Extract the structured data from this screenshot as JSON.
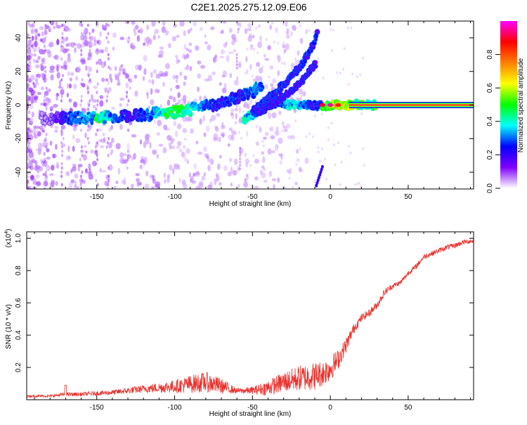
{
  "title": "C2E1.2025.275.12.09.E06",
  "colors": {
    "snr_line": "#e8312c",
    "ridge": "#ff2a2a",
    "axis": "#000000",
    "tail": "#ff3a3a"
  },
  "chart_data": [
    {
      "type": "heatmap",
      "xlabel": "Height of straight line (km)",
      "ylabel": "Frequency (Hz)",
      "xlim": [
        -195,
        92
      ],
      "ylim": [
        -50,
        50
      ],
      "x_ticks": [
        -150,
        -100,
        -50,
        0,
        50
      ],
      "y_ticks": [
        -40,
        -20,
        0,
        20,
        40
      ],
      "colorbar": {
        "label": "Normalized spectral amplitude",
        "range": [
          0,
          1
        ],
        "ticks": [
          "0.0",
          "0.2",
          "0.4",
          "0.6",
          "0.8"
        ],
        "tick_values": [
          0,
          0.2,
          0.4,
          0.6,
          0.8
        ],
        "colormap": [
          "#ffffff",
          "#8000ff",
          "#0000ff",
          "#00ffff",
          "#00ff00",
          "#ffff00",
          "#ff8000",
          "#ff0000",
          "#ff00ff"
        ]
      },
      "features": [
        {
          "name": "main trail",
          "points": [
            [
              -185,
              -8
            ],
            [
              -150,
              -7.5
            ],
            [
              -120,
              -6
            ],
            [
              -100,
              -4
            ],
            [
              -80,
              -1
            ],
            [
              -60,
              4
            ],
            [
              -50,
              8
            ],
            [
              -44,
              11
            ]
          ]
        },
        {
          "name": "lower branch",
          "points": [
            [
              -55,
              -8
            ],
            [
              -45,
              -3
            ],
            [
              -35,
              2
            ],
            [
              -25,
              0
            ],
            [
              -15,
              0
            ],
            [
              0,
              0
            ],
            [
              20,
              0
            ],
            [
              92,
              0
            ]
          ]
        },
        {
          "name": "upper chirp",
          "points": [
            [
              -50,
              -4
            ],
            [
              -40,
              4
            ],
            [
              -30,
              12
            ],
            [
              -20,
              22
            ],
            [
              -12,
              34
            ],
            [
              -8,
              44
            ]
          ]
        },
        {
          "name": "middle chirp",
          "points": [
            [
              -45,
              -4
            ],
            [
              -35,
              2
            ],
            [
              -25,
              8
            ],
            [
              -15,
              18
            ],
            [
              -10,
              24
            ]
          ]
        }
      ]
    },
    {
      "type": "line",
      "xlabel": "Height of straight line (km)",
      "ylabel": "SNR (10 * v/v)",
      "y_multiplier": "(x10",
      "y_multiplier_exp": "4",
      "y_multiplier_close": ")",
      "xlim": [
        -195,
        92
      ],
      "ylim": [
        0,
        1.04
      ],
      "x_ticks": [
        -150,
        -100,
        -50,
        0,
        50
      ],
      "y_ticks": [
        0.2,
        0.4,
        0.6,
        0.8,
        1.0
      ],
      "y_tick_labels": [
        "0.2",
        "0.4",
        "0.6",
        "0.8",
        "1.0"
      ],
      "series": [
        {
          "name": "SNR",
          "x": [
            -195,
            -180,
            -170,
            -160,
            -140,
            -120,
            -100,
            -90,
            -80,
            -70,
            -60,
            -50,
            -40,
            -30,
            -20,
            -10,
            -5,
            0,
            5,
            10,
            15,
            20,
            25,
            30,
            35,
            40,
            45,
            50,
            55,
            60,
            65,
            70,
            75,
            80,
            85,
            92
          ],
          "values": [
            0.02,
            0.02,
            0.03,
            0.03,
            0.04,
            0.06,
            0.07,
            0.08,
            0.09,
            0.07,
            0.05,
            0.05,
            0.06,
            0.09,
            0.11,
            0.12,
            0.14,
            0.17,
            0.23,
            0.32,
            0.43,
            0.5,
            0.53,
            0.58,
            0.66,
            0.7,
            0.72,
            0.78,
            0.82,
            0.88,
            0.9,
            0.92,
            0.94,
            0.95,
            0.97,
            0.98
          ],
          "noise": [
            0.01,
            0.01,
            0.015,
            0.015,
            0.02,
            0.03,
            0.05,
            0.07,
            0.08,
            0.06,
            0.02,
            0.03,
            0.06,
            0.08,
            0.1,
            0.11,
            0.1,
            0.1,
            0.08,
            0.06,
            0.04,
            0.03,
            0.03,
            0.03,
            0.03,
            0.02,
            0.02,
            0.02,
            0.02,
            0.02,
            0.02,
            0.02,
            0.02,
            0.02,
            0.02,
            0.02
          ]
        }
      ]
    }
  ]
}
